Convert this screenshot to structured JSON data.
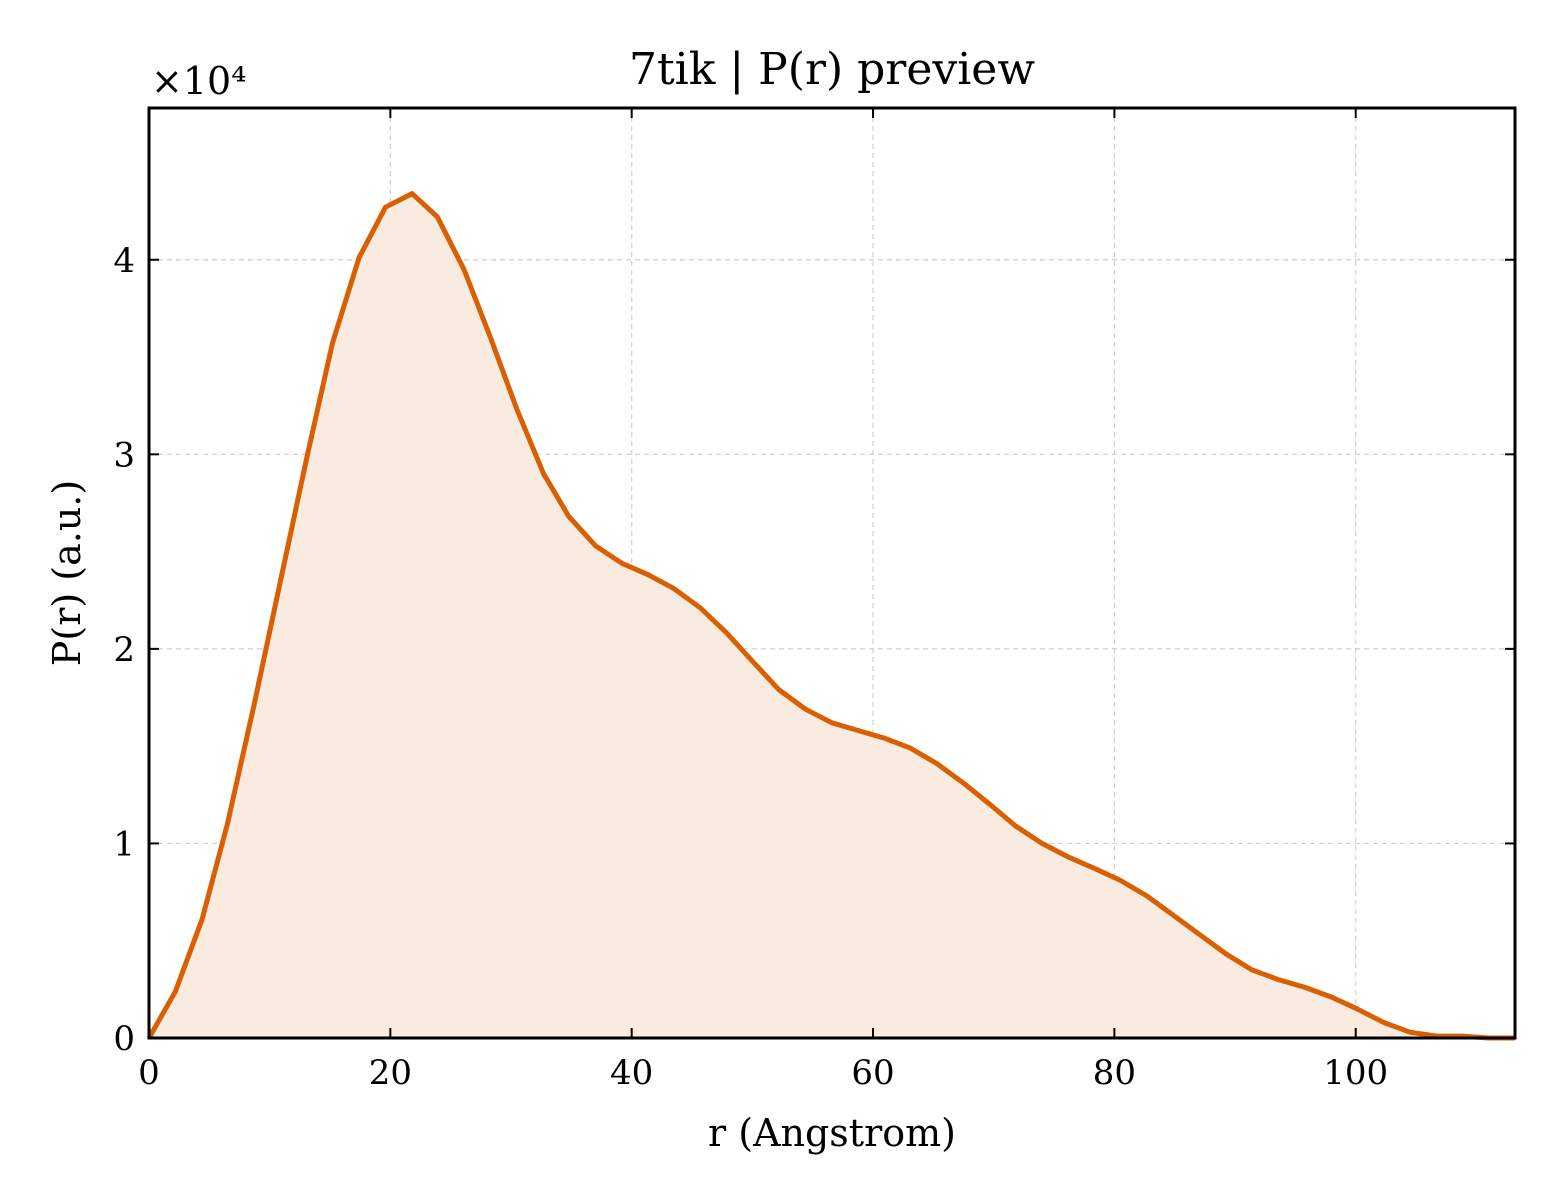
{
  "chart_data": {
    "type": "area",
    "title": "7tik | P(r) preview",
    "xlabel": "r (Angstrom)",
    "ylabel": "P(r) (a.u.)",
    "y_multiplier_label": "×10⁴",
    "y_scale": 10000,
    "xlim": [
      0,
      113.2
    ],
    "ylim": [
      0,
      47800
    ],
    "xticks": [
      0,
      20,
      40,
      60,
      80,
      100
    ],
    "yticks": [
      0,
      10000,
      20000,
      30000,
      40000
    ],
    "ytick_labels": [
      "0",
      "1",
      "2",
      "3",
      "4"
    ],
    "grid": true,
    "colors": {
      "line": "#d95f02",
      "fill": "#f9ebe0"
    },
    "series": [
      {
        "x": [
          0,
          2.2,
          4.4,
          6.5,
          8.7,
          10.9,
          13.1,
          15.2,
          17.4,
          19.6,
          21.8,
          23.9,
          26.1,
          28.3,
          30.5,
          32.7,
          34.8,
          37.0,
          39.2,
          41.4,
          43.5,
          45.7,
          47.9,
          50.1,
          52.2,
          54.4,
          56.6,
          58.8,
          61.0,
          63.1,
          65.3,
          67.5,
          69.7,
          71.8,
          74.0,
          76.2,
          78.4,
          80.5,
          82.7,
          84.9,
          87.1,
          89.3,
          91.4,
          93.6,
          95.8,
          98.0,
          100.1,
          102.3,
          104.5,
          106.7,
          108.8,
          111.0,
          113.2
        ],
        "values": [
          0,
          2400,
          6100,
          11000,
          17100,
          23500,
          29900,
          35700,
          40100,
          42700,
          43400,
          42200,
          39500,
          36000,
          32300,
          29000,
          26800,
          25300,
          24400,
          23800,
          23100,
          22100,
          20800,
          19300,
          17900,
          16900,
          16200,
          15800,
          15400,
          14900,
          14100,
          13100,
          12000,
          10900,
          10000,
          9300,
          8700,
          8100,
          7300,
          6300,
          5300,
          4300,
          3500,
          3000,
          2600,
          2100,
          1500,
          800,
          300,
          100,
          100,
          0,
          0
        ]
      }
    ]
  }
}
